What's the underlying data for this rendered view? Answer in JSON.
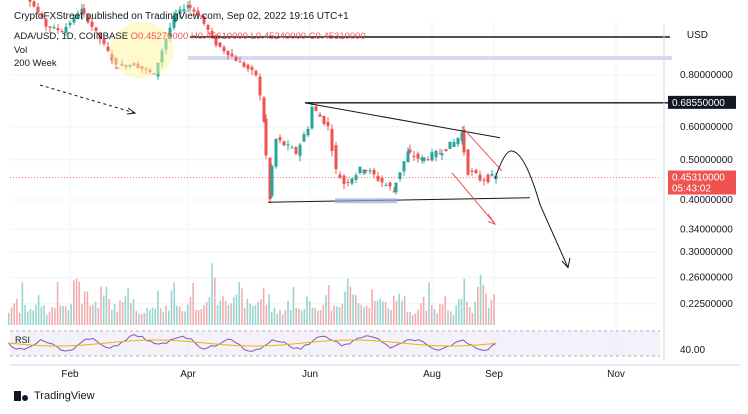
{
  "header": {
    "published": "CryptoFXStreet published on TradingView.com, Sep 02, 2022 19:16 UTC+1",
    "symbol": "ADA/USD, 1D, COINBASE",
    "ohlc": "O0.45270000 H0.45610000 L0.45240000 C0.45310000",
    "volume_label": "Vol",
    "ma_label": "200 Week",
    "currency": "USD"
  },
  "footer": {
    "brand": "TradingView"
  },
  "rsi": {
    "label": "RSI",
    "level": "40.00"
  },
  "colors": {
    "up": "#26a69a",
    "down": "#ef5350",
    "rsi_line": "#7e57c2",
    "rsi_ma": "#e6b800",
    "grid": "#f0f3fa",
    "text": "#131722"
  },
  "chart_data": {
    "type": "candlestick",
    "symbol": "ADA/USD",
    "interval": "1D",
    "exchange": "COINBASE",
    "price_scale": "log",
    "y_ticks": [
      "0.80000000",
      "0.60000000",
      "0.50000000",
      "0.40000000",
      "0.34000000",
      "0.30000000",
      "0.26000000",
      "0.22500000"
    ],
    "x_ticks": [
      "Feb",
      "Apr",
      "Jun",
      "Aug",
      "Sep",
      "Nov"
    ],
    "last_price": "0.45310000",
    "countdown": "05:43:02",
    "resistance_label": "0.68550000",
    "price_path": [
      {
        "date": "2022-01-01",
        "close": 1.32
      },
      {
        "date": "2022-01-10",
        "close": 1.25
      },
      {
        "date": "2022-01-20",
        "close": 1.05
      },
      {
        "date": "2022-01-28",
        "close": 1.02
      },
      {
        "date": "2022-02-07",
        "close": 1.15
      },
      {
        "date": "2022-02-24",
        "close": 0.84
      },
      {
        "date": "2022-03-05",
        "close": 0.85
      },
      {
        "date": "2022-03-15",
        "close": 0.8
      },
      {
        "date": "2022-03-25",
        "close": 1.1
      },
      {
        "date": "2022-04-01",
        "close": 1.18
      },
      {
        "date": "2022-04-08",
        "close": 1.1
      },
      {
        "date": "2022-04-15",
        "close": 0.95
      },
      {
        "date": "2022-04-25",
        "close": 0.87
      },
      {
        "date": "2022-05-05",
        "close": 0.8
      },
      {
        "date": "2022-05-09",
        "close": 0.62
      },
      {
        "date": "2022-05-12",
        "close": 0.4
      },
      {
        "date": "2022-05-15",
        "close": 0.56
      },
      {
        "date": "2022-05-25",
        "close": 0.52
      },
      {
        "date": "2022-05-31",
        "close": 0.6
      },
      {
        "date": "2022-06-02",
        "close": 0.67
      },
      {
        "date": "2022-06-10",
        "close": 0.6
      },
      {
        "date": "2022-06-14",
        "close": 0.47
      },
      {
        "date": "2022-06-18",
        "close": 0.44
      },
      {
        "date": "2022-06-28",
        "close": 0.48
      },
      {
        "date": "2022-07-05",
        "close": 0.45
      },
      {
        "date": "2022-07-13",
        "close": 0.42
      },
      {
        "date": "2022-07-20",
        "close": 0.52
      },
      {
        "date": "2022-07-27",
        "close": 0.5
      },
      {
        "date": "2022-08-05",
        "close": 0.52
      },
      {
        "date": "2022-08-12",
        "close": 0.55
      },
      {
        "date": "2022-08-16",
        "close": 0.58
      },
      {
        "date": "2022-08-19",
        "close": 0.47
      },
      {
        "date": "2022-08-25",
        "close": 0.45
      },
      {
        "date": "2022-09-02",
        "close": 0.4531
      }
    ],
    "volume": {
      "relative": [
        0.2,
        0.25,
        0.3,
        0.4,
        0.3,
        0.55,
        0.35,
        0.25,
        0.3,
        0.3,
        0.45,
        0.6,
        0.35,
        0.3,
        0.25,
        0.3,
        0.35,
        0.4,
        0.6,
        0.35,
        0.3,
        0.25,
        0.3,
        0.5,
        0.7,
        1.0,
        0.65,
        0.4,
        0.55,
        0.45,
        0.35,
        0.3,
        0.3,
        0.4,
        0.5,
        0.6,
        0.55,
        0.4,
        0.35,
        0.3,
        0.3,
        0.35,
        0.4,
        0.45,
        0.55,
        0.5,
        0.4,
        0.3,
        0.25,
        0.2
      ]
    },
    "legend": [
      "Vol",
      "200 Week"
    ]
  }
}
